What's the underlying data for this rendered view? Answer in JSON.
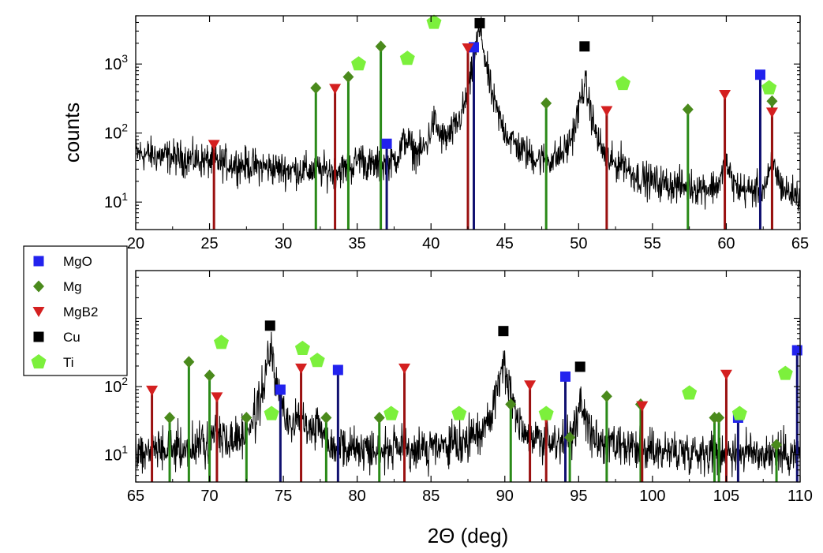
{
  "figure": {
    "ylabel": "counts",
    "xlabel": "2Θ (deg)"
  },
  "legend": {
    "items": [
      {
        "name": "MgO",
        "color": "#2222ee",
        "marker": "square"
      },
      {
        "name": "Mg",
        "color": "#4a8a1c",
        "marker": "diamond"
      },
      {
        "name": "MgB2",
        "color": "#d42020",
        "marker": "triangle-down"
      },
      {
        "name": "Cu",
        "color": "#000000",
        "marker": "square"
      },
      {
        "name": "Ti",
        "color": "#7cf03c",
        "marker": "pentagon"
      }
    ]
  },
  "colors": {
    "MgO": "#2222ee",
    "MgO_line": "#101070",
    "Mg": "#4a8a1c",
    "Mg_line": "#2a8a18",
    "MgB2": "#d42020",
    "MgB2_line": "#9a1010",
    "Cu": "#000000",
    "Ti": "#7cf03c",
    "spectrum": "#000000"
  },
  "chart_data": [
    {
      "type": "line",
      "panel": "top",
      "xlim": [
        20,
        65
      ],
      "ylim": [
        4,
        5000
      ],
      "yscale": "log",
      "xticks": [
        20,
        25,
        30,
        35,
        40,
        45,
        50,
        55,
        60,
        65
      ],
      "xtick_labels": [
        "20",
        "25",
        "30",
        "35",
        "40",
        "45",
        "50",
        "55",
        "60",
        "65"
      ],
      "yticks": [
        10,
        100,
        1000
      ],
      "ytick_labels": [
        "10¹",
        "10²",
        "10³"
      ],
      "spectrum": {
        "baseline": [
          [
            20,
            50
          ],
          [
            25,
            38
          ],
          [
            30,
            28
          ],
          [
            33,
            25
          ],
          [
            37,
            25
          ],
          [
            40,
            22
          ],
          [
            42,
            24
          ],
          [
            45,
            22
          ],
          [
            48,
            20
          ],
          [
            52,
            17
          ],
          [
            55,
            15
          ],
          [
            60,
            13
          ],
          [
            65,
            11
          ]
        ],
        "peaks": [
          {
            "x": 35.2,
            "height": 15,
            "width": 0.3
          },
          {
            "x": 38.3,
            "height": 45,
            "width": 0.35
          },
          {
            "x": 40.2,
            "height": 95,
            "width": 0.3
          },
          {
            "x": 43.3,
            "height": 2900,
            "width": 0.3
          },
          {
            "x": 50.4,
            "height": 450,
            "width": 0.35
          },
          {
            "x": 53.0,
            "height": 12,
            "width": 0.3
          },
          {
            "x": 60.0,
            "height": 20,
            "width": 0.25
          },
          {
            "x": 63.2,
            "height": 20,
            "width": 0.3
          }
        ],
        "noise": 0.18
      },
      "series": [
        {
          "name": "MgO",
          "points": [
            [
              37.0,
              70
            ],
            [
              42.9,
              1750
            ],
            [
              62.3,
              700
            ]
          ]
        },
        {
          "name": "Mg",
          "points": [
            [
              32.2,
              450
            ],
            [
              34.4,
              650
            ],
            [
              36.6,
              1800
            ],
            [
              47.8,
              270
            ],
            [
              57.4,
              220
            ],
            [
              63.1,
              290
            ]
          ]
        },
        {
          "name": "MgB2",
          "points": [
            [
              25.3,
              68
            ],
            [
              33.5,
              440
            ],
            [
              42.5,
              1700
            ],
            [
              51.9,
              210
            ],
            [
              59.9,
              360
            ],
            [
              63.1,
              200
            ]
          ]
        },
        {
          "name": "Cu",
          "points": [
            [
              43.3,
              3900
            ],
            [
              50.4,
              1800
            ]
          ]
        },
        {
          "name": "Ti",
          "points": [
            [
              35.1,
              1000
            ],
            [
              38.4,
              1200
            ],
            [
              40.2,
              4000
            ],
            [
              53.0,
              520
            ],
            [
              62.9,
              450
            ]
          ]
        }
      ]
    },
    {
      "type": "line",
      "panel": "bottom",
      "xlim": [
        65,
        110
      ],
      "ylim": [
        4,
        5000
      ],
      "yscale": "log",
      "xticks": [
        65,
        70,
        75,
        80,
        85,
        90,
        95,
        100,
        105,
        110
      ],
      "xtick_labels": [
        "65",
        "70",
        "75",
        "80",
        "85",
        "90",
        "95",
        "100",
        "105",
        "110"
      ],
      "yticks": [
        10,
        100,
        1000
      ],
      "ytick_labels": [
        "10¹",
        "10²",
        ""
      ],
      "spectrum": {
        "baseline": [
          [
            65,
            11
          ],
          [
            70,
            12
          ],
          [
            75,
            12
          ],
          [
            80,
            11
          ],
          [
            85,
            11
          ],
          [
            90,
            12
          ],
          [
            95,
            12
          ],
          [
            100,
            11
          ],
          [
            105,
            11
          ],
          [
            110,
            10
          ]
        ],
        "peaks": [
          {
            "x": 70.4,
            "height": 8,
            "width": 0.3
          },
          {
            "x": 74.1,
            "height": 300,
            "width": 0.3
          },
          {
            "x": 76.3,
            "height": 25,
            "width": 0.3
          },
          {
            "x": 77.4,
            "height": 15,
            "width": 0.3
          },
          {
            "x": 89.9,
            "height": 200,
            "width": 0.35
          },
          {
            "x": 95.2,
            "height": 40,
            "width": 0.3
          }
        ],
        "noise": 0.22
      },
      "series": [
        {
          "name": "MgO",
          "points": [
            [
              74.8,
              90
            ],
            [
              78.7,
              175
            ],
            [
              94.1,
              140
            ],
            [
              105.8,
              35
            ],
            [
              109.8,
              340
            ]
          ]
        },
        {
          "name": "Mg",
          "points": [
            [
              67.3,
              35
            ],
            [
              68.6,
              230
            ],
            [
              70.0,
              145
            ],
            [
              72.5,
              35
            ],
            [
              77.9,
              35
            ],
            [
              81.5,
              35
            ],
            [
              90.4,
              55
            ],
            [
              94.4,
              18
            ],
            [
              96.9,
              72
            ],
            [
              99.2,
              55
            ],
            [
              104.2,
              35
            ],
            [
              104.5,
              35
            ],
            [
              108.4,
              14
            ]
          ]
        },
        {
          "name": "MgB2",
          "points": [
            [
              66.1,
              88
            ],
            [
              70.5,
              70
            ],
            [
              76.2,
              185
            ],
            [
              83.2,
              185
            ],
            [
              91.7,
              105
            ],
            [
              92.8,
              35
            ],
            [
              99.3,
              52
            ],
            [
              105.0,
              150
            ]
          ]
        },
        {
          "name": "Cu",
          "points": [
            [
              74.1,
              780
            ],
            [
              89.9,
              650
            ],
            [
              95.1,
              195
            ]
          ]
        },
        {
          "name": "Ti",
          "points": [
            [
              70.8,
              440
            ],
            [
              74.2,
              40
            ],
            [
              76.3,
              360
            ],
            [
              77.3,
              240
            ],
            [
              82.3,
              40
            ],
            [
              86.9,
              40
            ],
            [
              92.8,
              40
            ],
            [
              102.5,
              80
            ],
            [
              105.9,
              40
            ],
            [
              109.0,
              155
            ]
          ]
        }
      ]
    }
  ]
}
